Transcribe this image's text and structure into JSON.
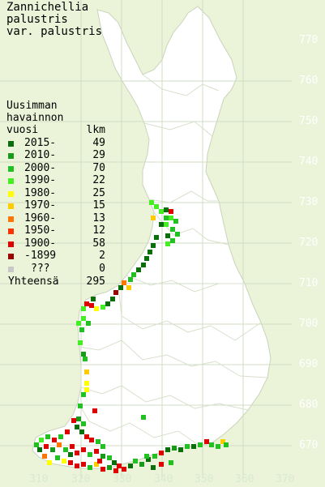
{
  "title": {
    "line1": "Zannichellia",
    "line2": "palustris",
    "line3": "var. palustris"
  },
  "legend": {
    "header1": "Uusimman",
    "header2": "havainnon",
    "header3_year": "vuosi",
    "header3_count": "lkm",
    "rows": [
      {
        "label": "2015-",
        "count": "49",
        "color": "#0a6e0a"
      },
      {
        "label": "2010-",
        "count": "29",
        "color": "#1a9a1a"
      },
      {
        "label": "2000-",
        "count": "70",
        "color": "#22c022"
      },
      {
        "label": "1990-",
        "count": "22",
        "color": "#44ee22"
      },
      {
        "label": "1980-",
        "count": "25",
        "color": "#ffff00"
      },
      {
        "label": "1970-",
        "count": "15",
        "color": "#ffcc00"
      },
      {
        "label": "1960-",
        "count": "13",
        "color": "#ff7700"
      },
      {
        "label": "1950-",
        "count": "12",
        "color": "#ff3300"
      },
      {
        "label": "1900-",
        "count": "58",
        "color": "#dd0000"
      },
      {
        "label": "-1899",
        "count": "2",
        "color": "#990000"
      },
      {
        "label": "???",
        "count": "0",
        "color": "#c8c8c8"
      }
    ],
    "total_label": "Yhteensä",
    "total_count": "295"
  },
  "axes": {
    "y_labels": [
      "770",
      "760",
      "750",
      "740",
      "730",
      "720",
      "710",
      "700",
      "690",
      "680",
      "670"
    ],
    "x_labels": [
      "310",
      "320",
      "330",
      "340",
      "350",
      "360",
      "370"
    ]
  },
  "colors": {
    "background": "#ebf3d8",
    "land": "#ffffff",
    "grid": "#d0dcc4"
  }
}
